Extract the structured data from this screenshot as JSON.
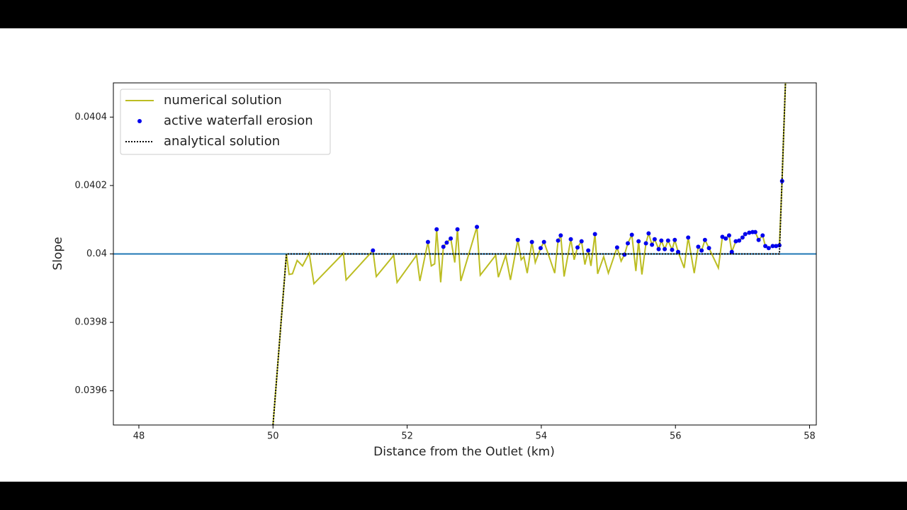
{
  "chart_data": {
    "type": "line",
    "xlabel": "Distance from the Outlet (km)",
    "ylabel": "Slope",
    "xlim": [
      47.62,
      58.1
    ],
    "ylim": [
      0.0395,
      0.0405
    ],
    "xticks": [
      48,
      50,
      52,
      54,
      56,
      58
    ],
    "yticks": [
      0.0396,
      0.0398,
      0.04,
      0.0402,
      0.0404
    ],
    "legend": "upper left",
    "hline": {
      "value": 0.04,
      "color": "#1f77b4"
    },
    "series": [
      {
        "name": "numerical solution",
        "style": "line",
        "color": "#bcbd22",
        "x": [
          50.0,
          50.2,
          50.24,
          50.29,
          50.36,
          50.44,
          50.54,
          50.61,
          51.05,
          51.09,
          51.49,
          51.54,
          51.8,
          51.85,
          52.14,
          52.19,
          52.31,
          52.36,
          52.41,
          52.44,
          52.5,
          52.54,
          52.59,
          52.65,
          52.71,
          52.75,
          52.8,
          53.04,
          53.09,
          53.32,
          53.36,
          53.47,
          53.54,
          53.65,
          53.7,
          53.74,
          53.79,
          53.86,
          53.91,
          53.99,
          54.04,
          54.11,
          54.2,
          54.25,
          54.29,
          54.34,
          54.44,
          54.49,
          54.54,
          54.6,
          54.65,
          54.7,
          54.74,
          54.8,
          54.84,
          54.93,
          55.0,
          55.13,
          55.19,
          55.24,
          55.29,
          55.35,
          55.41,
          55.45,
          55.5,
          55.56,
          55.6,
          55.65,
          55.69,
          55.75,
          55.79,
          55.84,
          55.89,
          55.95,
          55.99,
          56.04,
          56.13,
          56.19,
          56.28,
          56.34,
          56.39,
          56.44,
          56.5,
          56.64,
          56.7,
          56.75,
          56.8,
          56.84,
          56.9,
          56.95,
          57.0,
          57.04,
          57.1,
          57.15,
          57.19,
          57.24,
          57.3,
          57.34,
          57.39,
          57.45,
          57.5,
          57.55,
          57.59,
          57.64
        ],
        "values": [
          0.0395,
          0.04,
          0.03994,
          0.039942,
          0.039981,
          0.039965,
          0.040002,
          0.039913,
          0.040002,
          0.039924,
          0.04001,
          0.039934,
          0.039996,
          0.039917,
          0.039996,
          0.039921,
          0.040035,
          0.039965,
          0.039971,
          0.040072,
          0.039917,
          0.040021,
          0.040033,
          0.040045,
          0.039975,
          0.040072,
          0.039921,
          0.040079,
          0.039938,
          0.039996,
          0.039932,
          0.039996,
          0.039924,
          0.040041,
          0.039983,
          0.039992,
          0.039944,
          0.040035,
          0.039975,
          0.040017,
          0.040035,
          0.039996,
          0.039944,
          0.040039,
          0.040054,
          0.039934,
          0.040043,
          0.039983,
          0.040019,
          0.040037,
          0.039969,
          0.04001,
          0.039965,
          0.040058,
          0.039942,
          0.039992,
          0.039944,
          0.040019,
          0.039979,
          0.039998,
          0.040031,
          0.040056,
          0.03995,
          0.040037,
          0.03994,
          0.040031,
          0.04006,
          0.040027,
          0.040043,
          0.040014,
          0.040039,
          0.040014,
          0.040039,
          0.040012,
          0.040041,
          0.040006,
          0.039959,
          0.040048,
          0.039944,
          0.040021,
          0.04001,
          0.040041,
          0.040017,
          0.039959,
          0.04005,
          0.040045,
          0.040054,
          0.040006,
          0.040037,
          0.040039,
          0.040048,
          0.040058,
          0.040062,
          0.040064,
          0.040064,
          0.040041,
          0.040054,
          0.040023,
          0.040017,
          0.040023,
          0.040023,
          0.040025,
          0.040213,
          0.0405
        ]
      },
      {
        "name": "active waterfall erosion",
        "style": "scatter",
        "color": "#0000ee",
        "x": [
          51.49,
          52.31,
          52.44,
          52.54,
          52.59,
          52.65,
          52.75,
          53.04,
          53.65,
          53.86,
          53.99,
          54.04,
          54.25,
          54.29,
          54.44,
          54.54,
          54.6,
          54.7,
          54.8,
          55.13,
          55.24,
          55.29,
          55.35,
          55.45,
          55.56,
          55.6,
          55.65,
          55.69,
          55.75,
          55.79,
          55.84,
          55.89,
          55.95,
          55.99,
          56.04,
          56.19,
          56.34,
          56.39,
          56.44,
          56.5,
          56.7,
          56.75,
          56.8,
          56.84,
          56.9,
          56.95,
          57.0,
          57.04,
          57.1,
          57.15,
          57.19,
          57.24,
          57.3,
          57.34,
          57.39,
          57.45,
          57.5,
          57.55,
          57.59
        ],
        "values": [
          0.04001,
          0.040035,
          0.040072,
          0.040021,
          0.040033,
          0.040045,
          0.040072,
          0.040079,
          0.040041,
          0.040035,
          0.040017,
          0.040035,
          0.040039,
          0.040054,
          0.040043,
          0.040019,
          0.040037,
          0.04001,
          0.040058,
          0.040019,
          0.039998,
          0.040031,
          0.040056,
          0.040037,
          0.040031,
          0.04006,
          0.040027,
          0.040043,
          0.040014,
          0.040039,
          0.040014,
          0.040039,
          0.040012,
          0.040041,
          0.040006,
          0.040048,
          0.040021,
          0.04001,
          0.040041,
          0.040017,
          0.04005,
          0.040045,
          0.040054,
          0.040006,
          0.040037,
          0.040039,
          0.040048,
          0.040058,
          0.040062,
          0.040064,
          0.040064,
          0.040041,
          0.040054,
          0.040023,
          0.040017,
          0.040023,
          0.040023,
          0.040025,
          0.040213
        ]
      },
      {
        "name": "analytical solution",
        "style": "dotted",
        "color": "#000000",
        "x": [
          50.0,
          50.2,
          57.55,
          57.64
        ],
        "values": [
          0.0395,
          0.04,
          0.04,
          0.0405
        ]
      }
    ]
  }
}
